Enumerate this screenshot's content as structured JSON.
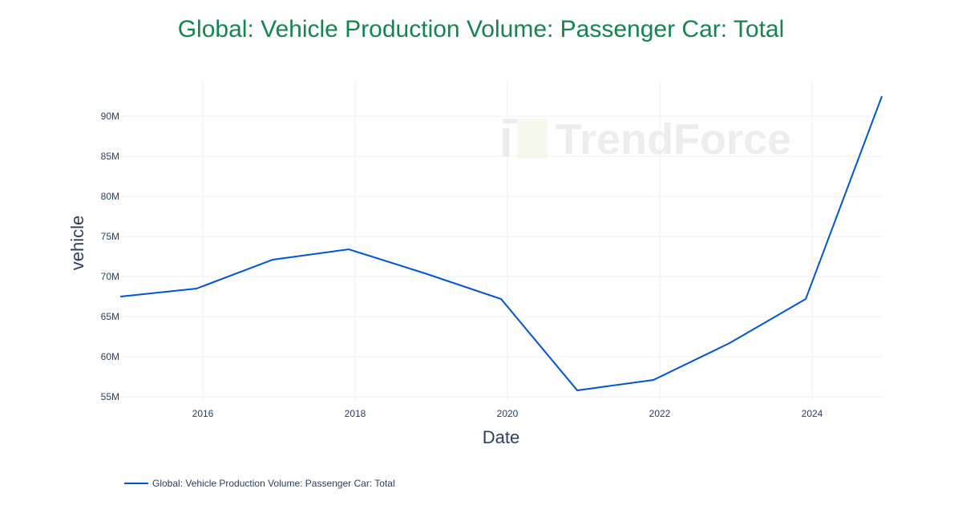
{
  "chart_data": {
    "type": "line",
    "title": "Global: Vehicle Production Volume: Passenger Car: Total",
    "xlabel": "Date",
    "ylabel": "vehicle",
    "x": [
      "2014-12",
      "2015-12",
      "2016-12",
      "2017-12",
      "2018-12",
      "2019-12",
      "2020-12",
      "2021-12",
      "2022-12",
      "2023-12",
      "2024-12"
    ],
    "series": [
      {
        "name": "Global: Vehicle Production Volume: Passenger Car: Total",
        "values": [
          67500000,
          68500000,
          72100000,
          73400000,
          70400000,
          67200000,
          55800000,
          57100000,
          61700000,
          67200000,
          92500000
        ],
        "color": "#0055d4"
      }
    ],
    "y_ticks": [
      "55M",
      "60M",
      "65M",
      "70M",
      "75M",
      "80M",
      "85M",
      "90M"
    ],
    "x_ticks": [
      "2016",
      "2018",
      "2020",
      "2022",
      "2024"
    ],
    "grid": true,
    "legend_position": "bottom-left",
    "watermark": "TrendForce",
    "title_color": "#15854f"
  }
}
